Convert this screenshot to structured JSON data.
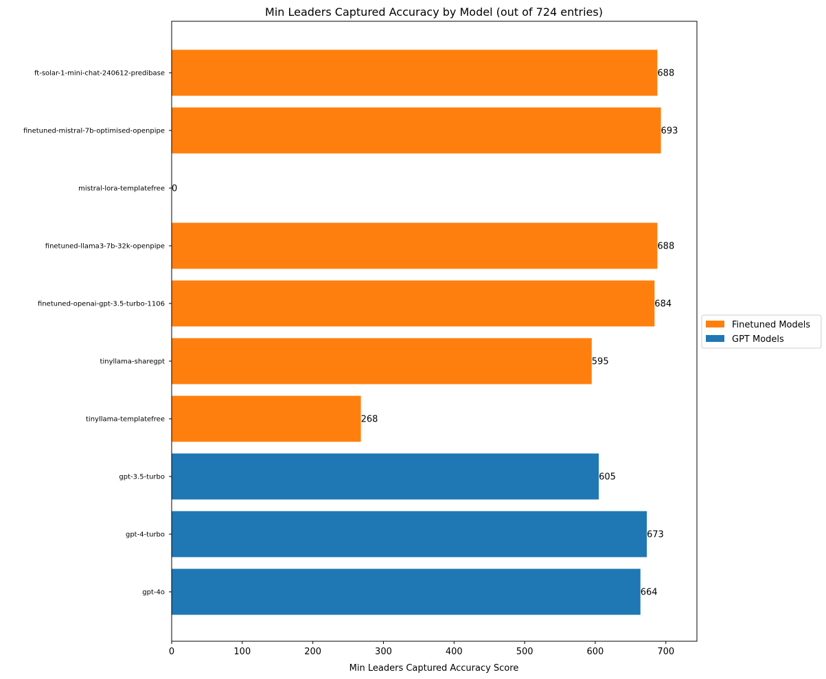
{
  "chart_data": {
    "type": "bar",
    "orientation": "horizontal",
    "title": "Min Leaders Captured Accuracy by Model (out of 724 entries)",
    "xlabel": "Min Leaders Captured Accuracy Score",
    "ylabel": "",
    "xlim": [
      0,
      744
    ],
    "xticks": [
      0,
      100,
      200,
      300,
      400,
      500,
      600,
      700
    ],
    "grid": false,
    "legend_position": "right",
    "categories": [
      "ft-solar-1-mini-chat-240612-predibase",
      "finetuned-mistral-7b-optimised-openpipe",
      "mistral-lora-templatefree",
      "finetuned-llama3-7b-32k-openpipe",
      "finetuned-openai-gpt-3.5-turbo-1106",
      "tinyllama-sharegpt",
      "tinyllama-templatefree",
      "gpt-3.5-turbo",
      "gpt-4-turbo",
      "gpt-4o"
    ],
    "values": [
      688,
      693,
      0,
      688,
      684,
      595,
      268,
      605,
      673,
      664
    ],
    "groups": [
      "Finetuned Models",
      "Finetuned Models",
      "Finetuned Models",
      "Finetuned Models",
      "Finetuned Models",
      "Finetuned Models",
      "Finetuned Models",
      "GPT Models",
      "GPT Models",
      "GPT Models"
    ],
    "series": [
      {
        "name": "Finetuned Models",
        "color": "#ff7f0e"
      },
      {
        "name": "GPT Models",
        "color": "#1f77b4"
      }
    ]
  }
}
